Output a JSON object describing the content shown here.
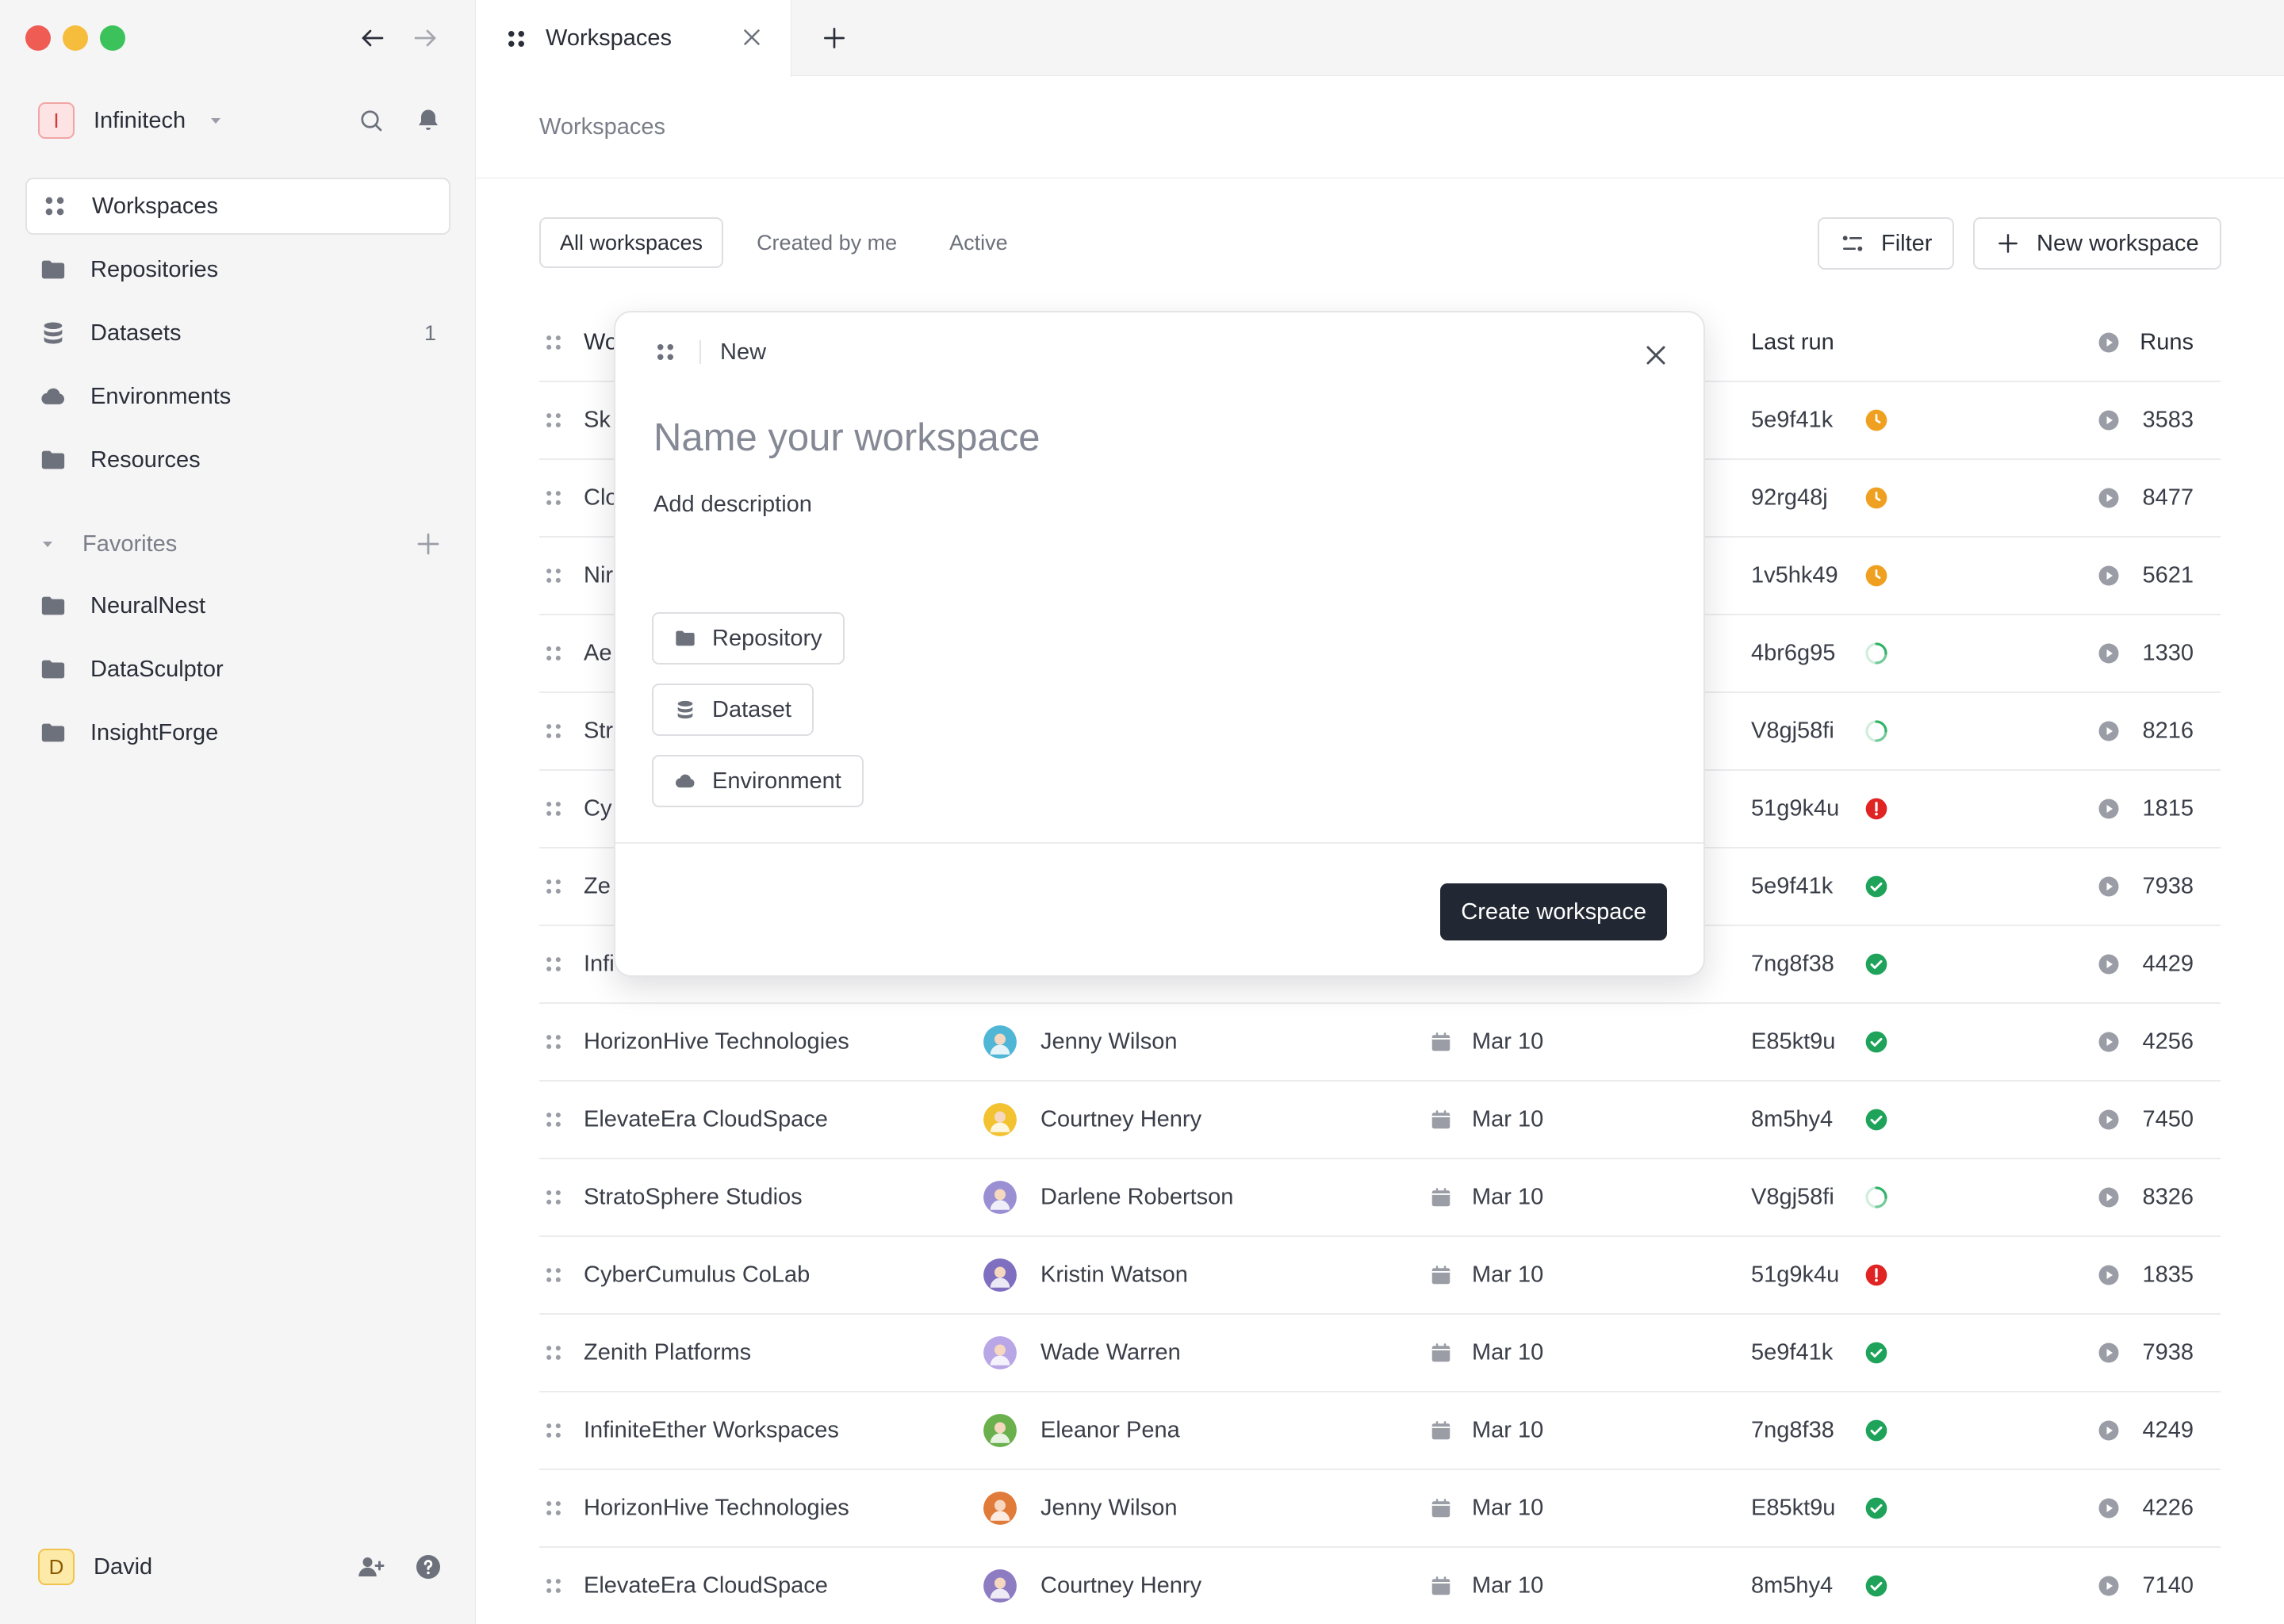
{
  "sidebar": {
    "org": {
      "initial": "I",
      "name": "Infinitech"
    },
    "nav": [
      {
        "label": "Workspaces",
        "icon": "workspaces-icon",
        "active": true,
        "count": ""
      },
      {
        "label": "Repositories",
        "icon": "folder-icon",
        "active": false,
        "count": ""
      },
      {
        "label": "Datasets",
        "icon": "database-icon",
        "active": false,
        "count": "1"
      },
      {
        "label": "Environments",
        "icon": "cloud-icon",
        "active": false,
        "count": ""
      },
      {
        "label": "Resources",
        "icon": "folder-icon",
        "active": false,
        "count": ""
      }
    ],
    "favorites_label": "Favorites",
    "favorites": [
      {
        "label": "NeuralNest"
      },
      {
        "label": "DataSculptor"
      },
      {
        "label": "InsightForge"
      }
    ],
    "user": {
      "initial": "D",
      "name": "David"
    }
  },
  "tabs": [
    {
      "label": "Workspaces"
    }
  ],
  "breadcrumb": "Workspaces",
  "filters": {
    "segments": [
      "All workspaces",
      "Created by me",
      "Active"
    ],
    "active_index": 0,
    "filter_label": "Filter",
    "new_label": "New workspace"
  },
  "table": {
    "header": {
      "name": "Wo",
      "last_run": "Last run",
      "runs": "Runs"
    },
    "rows": [
      {
        "name": "Sk",
        "owner": "",
        "date": "",
        "hash": "5e9f41k",
        "status": "pending",
        "runs": "3583"
      },
      {
        "name": "Clo",
        "owner": "",
        "date": "",
        "hash": "92rg48j",
        "status": "pending",
        "runs": "8477"
      },
      {
        "name": "Nir",
        "owner": "",
        "date": "",
        "hash": "1v5hk49",
        "status": "pending",
        "runs": "5621"
      },
      {
        "name": "Ae",
        "owner": "",
        "date": "",
        "hash": "4br6g95",
        "status": "running",
        "runs": "1330"
      },
      {
        "name": "Str",
        "owner": "",
        "date": "",
        "hash": "V8gj58fi",
        "status": "running",
        "runs": "8216"
      },
      {
        "name": "Cy",
        "owner": "",
        "date": "",
        "hash": "51g9k4u",
        "status": "error",
        "runs": "1815"
      },
      {
        "name": "Ze",
        "owner": "",
        "date": "",
        "hash": "5e9f41k",
        "status": "success",
        "runs": "7938"
      },
      {
        "name": "Infi",
        "owner": "",
        "date": "",
        "hash": "7ng8f38",
        "status": "success",
        "runs": "4429"
      },
      {
        "name": "HorizonHive Technologies",
        "owner": "Jenny Wilson",
        "date": "Mar 10",
        "hash": "E85kt9u",
        "status": "success",
        "runs": "4256",
        "avatar": "#4fb6d6"
      },
      {
        "name": "ElevateEra CloudSpace",
        "owner": "Courtney Henry",
        "date": "Mar 10",
        "hash": "8m5hy4",
        "status": "success",
        "runs": "7450",
        "avatar": "#f2c230"
      },
      {
        "name": "StratoSphere Studios",
        "owner": "Darlene Robertson",
        "date": "Mar 10",
        "hash": "V8gj58fi",
        "status": "running",
        "runs": "8326",
        "avatar": "#9b8fd3"
      },
      {
        "name": "CyberCumulus CoLab",
        "owner": "Kristin Watson",
        "date": "Mar 10",
        "hash": "51g9k4u",
        "status": "error",
        "runs": "1835",
        "avatar": "#7f6fc0"
      },
      {
        "name": "Zenith Platforms",
        "owner": "Wade Warren",
        "date": "Mar 10",
        "hash": "5e9f41k",
        "status": "success",
        "runs": "7938",
        "avatar": "#b9a6e6"
      },
      {
        "name": "InfiniteEther Workspaces",
        "owner": "Eleanor Pena",
        "date": "Mar 10",
        "hash": "7ng8f38",
        "status": "success",
        "runs": "4249",
        "avatar": "#6ab04c"
      },
      {
        "name": "HorizonHive Technologies",
        "owner": "Jenny Wilson",
        "date": "Mar 10",
        "hash": "E85kt9u",
        "status": "success",
        "runs": "4226",
        "avatar": "#e07b39"
      },
      {
        "name": "ElevateEra CloudSpace",
        "owner": "Courtney Henry",
        "date": "Mar 10",
        "hash": "8m5hy4",
        "status": "success",
        "runs": "7140",
        "avatar": "#8e7cc3"
      }
    ]
  },
  "modal": {
    "header_label": "New",
    "title_placeholder": "Name your workspace",
    "description_placeholder": "Add description",
    "chips": [
      {
        "label": "Repository",
        "icon": "folder-icon"
      },
      {
        "label": "Dataset",
        "icon": "database-icon"
      },
      {
        "label": "Environment",
        "icon": "cloud-icon"
      }
    ],
    "create_label": "Create workspace"
  },
  "colors": {
    "status_pending": "#f0a020",
    "status_running": "#34b36a",
    "status_error": "#e02424",
    "status_success": "#1fa35a",
    "primary_button": "#222833"
  }
}
